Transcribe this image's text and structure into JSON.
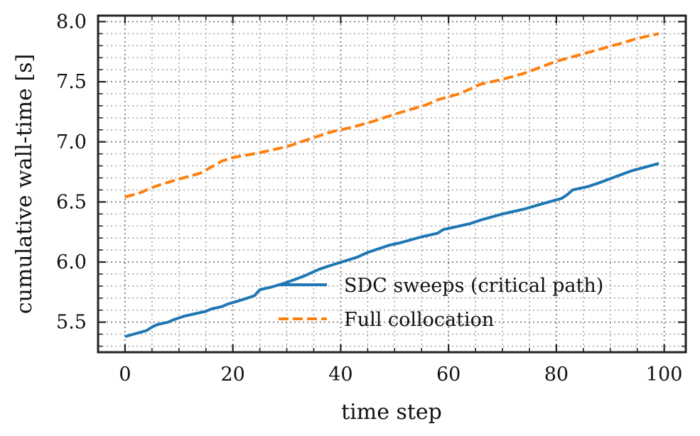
{
  "chart_data": {
    "type": "line",
    "xlabel": "time step",
    "ylabel": "cumulative wall-time [s]",
    "xlim": [
      -5,
      104
    ],
    "ylim": [
      5.25,
      8.05
    ],
    "xticks": [
      0,
      20,
      40,
      60,
      80,
      100
    ],
    "xtick_labels": [
      "0",
      "20",
      "40",
      "60",
      "80",
      "100"
    ],
    "yticks": [
      5.5,
      6.0,
      6.5,
      7.0,
      7.5,
      8.0
    ],
    "ytick_labels": [
      "5.5",
      "6.0",
      "6.5",
      "7.0",
      "7.5",
      "8.0"
    ],
    "x_minor_step": 5,
    "y_minor_step": 0.1,
    "grid": true,
    "legend_position": "lower-right",
    "series": [
      {
        "name": "SDC sweeps (critical path)",
        "color": "#1f77b4",
        "linestyle": "solid",
        "x": [
          0,
          4,
          5,
          6,
          8,
          9,
          11,
          12,
          15,
          16,
          18,
          19,
          22,
          24,
          25,
          27,
          30,
          33,
          36,
          38,
          43,
          45,
          49,
          51,
          55,
          58,
          59,
          64,
          66,
          70,
          74,
          77,
          81,
          82,
          83,
          86,
          88,
          91,
          94,
          99
        ],
        "y": [
          5.38,
          5.43,
          5.46,
          5.48,
          5.5,
          5.52,
          5.55,
          5.56,
          5.59,
          5.61,
          5.63,
          5.65,
          5.69,
          5.72,
          5.77,
          5.79,
          5.83,
          5.88,
          5.94,
          5.97,
          6.04,
          6.08,
          6.14,
          6.16,
          6.21,
          6.24,
          6.27,
          6.32,
          6.35,
          6.4,
          6.44,
          6.48,
          6.53,
          6.56,
          6.6,
          6.63,
          6.66,
          6.71,
          6.76,
          6.82
        ]
      },
      {
        "name": "Full collocation",
        "color": "#ff7f0e",
        "linestyle": "dashed",
        "x": [
          0,
          3,
          5,
          7,
          10,
          14,
          16,
          18,
          20,
          25,
          30,
          34,
          38,
          42,
          46,
          50,
          56,
          58,
          62,
          64,
          66,
          70,
          74,
          77,
          80,
          84,
          88,
          92,
          95,
          99
        ],
        "y": [
          6.54,
          6.58,
          6.62,
          6.65,
          6.69,
          6.74,
          6.79,
          6.84,
          6.87,
          6.91,
          6.96,
          7.02,
          7.08,
          7.12,
          7.17,
          7.23,
          7.31,
          7.35,
          7.4,
          7.44,
          7.48,
          7.52,
          7.57,
          7.62,
          7.67,
          7.72,
          7.77,
          7.82,
          7.86,
          7.9
        ]
      }
    ]
  }
}
